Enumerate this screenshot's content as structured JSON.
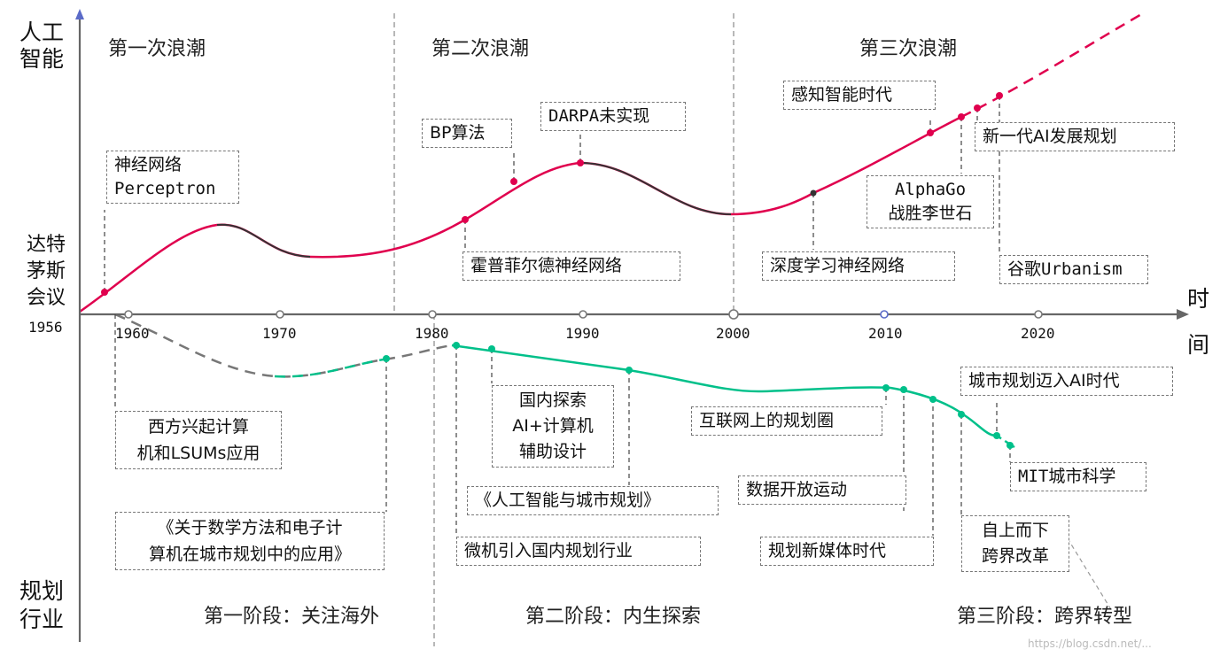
{
  "axes": {
    "y_upper_label": "人工\n智能",
    "y_lower_label": "规划\n行业",
    "x_label": "时\n间",
    "start_label": "达特\n茅斯\n会议",
    "start_year": "1956",
    "ticks": [
      "1960",
      "1970",
      "1980",
      "1990",
      "2000",
      "2010",
      "2020"
    ]
  },
  "waves": {
    "first": "第一次浪潮",
    "second": "第二次浪潮",
    "third": "第三次浪潮"
  },
  "ai_events": {
    "perceptron": "神经网络\nPerceptron",
    "bp": "BP算法",
    "darpa": "DARPA未实现",
    "hopfield": "霍普菲尔德神经网络",
    "perception_era": "感知智能时代",
    "deep_learning": "深度学习神经网络",
    "alphago": "AlphaGo\n战胜李世石",
    "new_gen_plan": "新一代AI发展规划",
    "google": "谷歌Urbanism"
  },
  "planning_events": {
    "west": "西方兴起计算\n机和LSUMs应用",
    "book": "《关于数学方法和电子计\n算机在城市规划中的应用》",
    "domestic": "国内探索\nAI+计算机\n辅助设计",
    "ai_city_book": "《人工智能与城市规划》",
    "micro": "微机引入国内规划行业",
    "internet": "互联网上的规划圈",
    "open_data": "数据开放运动",
    "new_media": "规划新媒体时代",
    "ai_era": "城市规划迈入AI时代",
    "mit": "MIT城市科学",
    "cross": "自上而下\n跨界改革"
  },
  "phases": {
    "p1": "第一阶段：关注海外",
    "p2": "第二阶段：内生探索",
    "p3": "第三阶段：跨界转型"
  },
  "colors": {
    "ai_curve": "#e0004e",
    "ai_curve_dark": "#333333",
    "planning_curve": "#00c08a",
    "planning_dashed": "#777777",
    "axis": "#666666",
    "axis_arrow": "#5b6bc8"
  },
  "watermark": "https://blog.csdn.net/..."
}
